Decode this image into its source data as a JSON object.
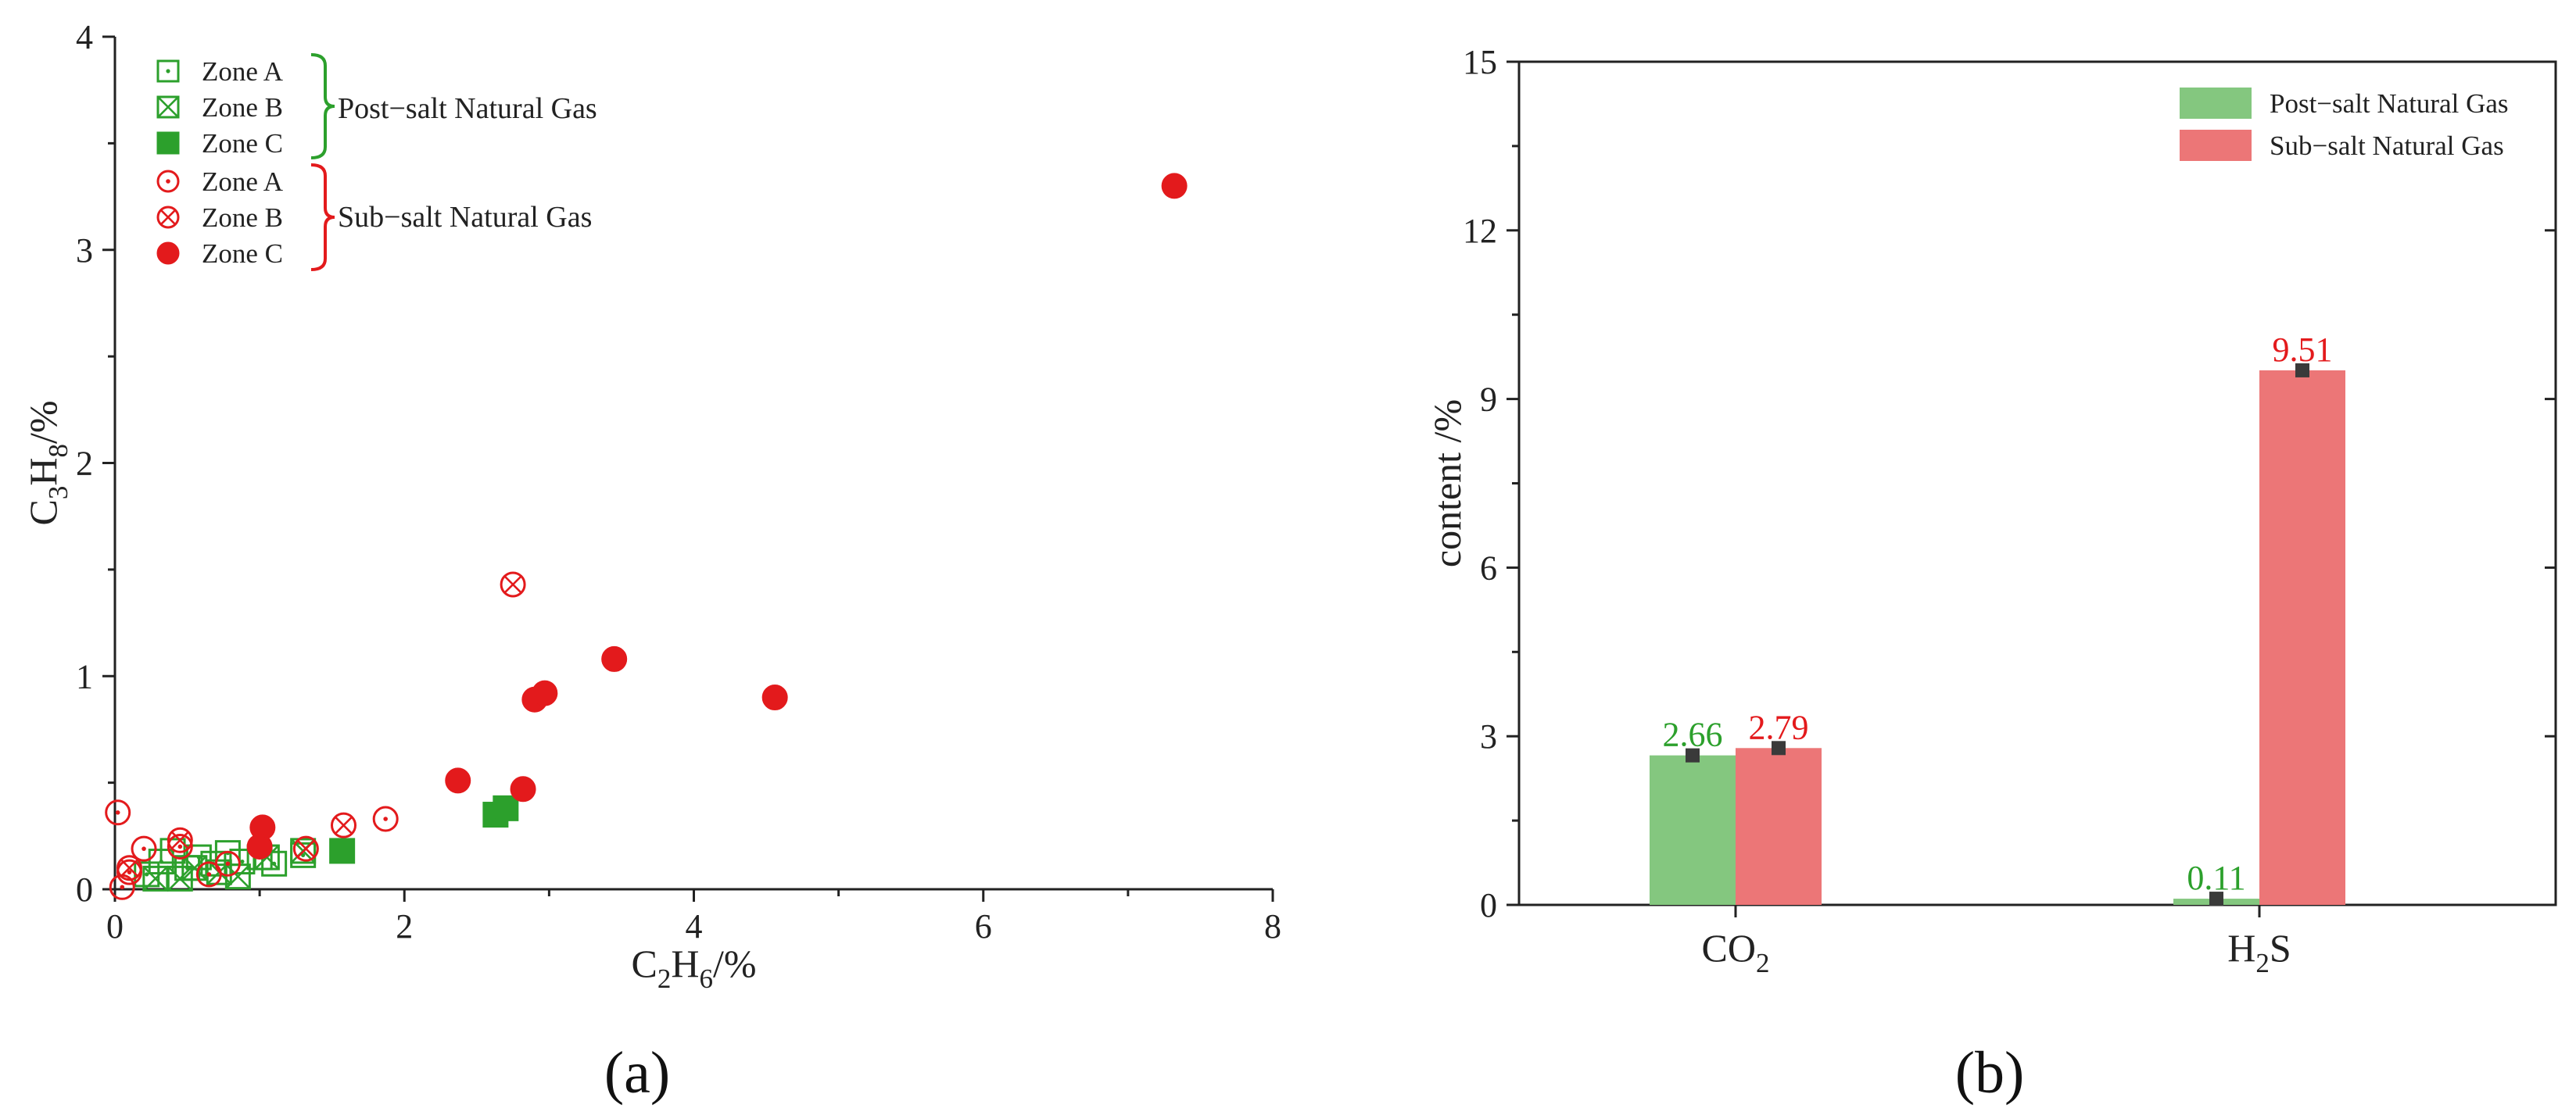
{
  "chart_data": [
    {
      "type": "scatter",
      "panel_label": "(a)",
      "xlabel": {
        "base": "C",
        "sub": "2",
        "base2": "H",
        "sub2": "6",
        "tail": "/%"
      },
      "ylabel": {
        "base": "C",
        "sub": "3",
        "base2": "H",
        "sub2": "8",
        "tail": "/%"
      },
      "xlim": [
        0,
        8
      ],
      "ylim": [
        0,
        4
      ],
      "xticks": [
        "0",
        "2",
        "4",
        "6",
        "8"
      ],
      "yticks": [
        "0",
        "1",
        "2",
        "3",
        "4"
      ],
      "legend_position": "top-left",
      "groups": [
        "Post−salt Natural Gas",
        "Sub−salt Natural Gas"
      ],
      "colors": {
        "post_salt": "#2ca02c",
        "sub_salt": "#e31a1c"
      },
      "series": [
        {
          "name": "Zone A",
          "group": 0,
          "marker": "square-dot",
          "points": [
            [
              0.22,
              0.07
            ],
            [
              0.32,
              0.13
            ],
            [
              0.4,
              0.18
            ],
            [
              0.5,
              0.1
            ],
            [
              0.58,
              0.15
            ],
            [
              0.68,
              0.12
            ],
            [
              0.78,
              0.17
            ],
            [
              0.88,
              0.13
            ],
            [
              1.0,
              0.15
            ],
            [
              1.1,
              0.12
            ],
            [
              1.3,
              0.16
            ]
          ]
        },
        {
          "name": "Zone B",
          "group": 0,
          "marker": "square-x",
          "points": [
            [
              0.28,
              0.05
            ],
            [
              0.45,
              0.05
            ],
            [
              0.55,
              0.1
            ],
            [
              0.72,
              0.08
            ],
            [
              0.85,
              0.06
            ],
            [
              1.05,
              0.15
            ],
            [
              1.3,
              0.18
            ]
          ]
        },
        {
          "name": "Zone C",
          "group": 0,
          "marker": "square-filled",
          "points": [
            [
              1.57,
              0.18
            ],
            [
              2.63,
              0.35
            ],
            [
              2.7,
              0.38
            ]
          ]
        },
        {
          "name": "Zone A",
          "group": 1,
          "marker": "circle-dot",
          "points": [
            [
              0.02,
              0.36
            ],
            [
              0.05,
              0.01
            ],
            [
              0.1,
              0.08
            ],
            [
              0.2,
              0.19
            ],
            [
              0.45,
              0.2
            ],
            [
              0.65,
              0.07
            ],
            [
              0.78,
              0.12
            ],
            [
              1.87,
              0.33
            ]
          ]
        },
        {
          "name": "Zone B",
          "group": 1,
          "marker": "circle-x",
          "points": [
            [
              0.1,
              0.1
            ],
            [
              0.45,
              0.23
            ],
            [
              1.32,
              0.19
            ],
            [
              1.58,
              0.3
            ],
            [
              2.75,
              1.43
            ]
          ]
        },
        {
          "name": "Zone C",
          "group": 1,
          "marker": "circle-filled",
          "points": [
            [
              1.02,
              0.29
            ],
            [
              1.0,
              0.2
            ],
            [
              2.37,
              0.51
            ],
            [
              2.82,
              0.47
            ],
            [
              2.9,
              0.89
            ],
            [
              2.97,
              0.92
            ],
            [
              3.45,
              1.08
            ],
            [
              4.56,
              0.9
            ],
            [
              7.32,
              3.3
            ]
          ]
        }
      ]
    },
    {
      "type": "bar",
      "panel_label": "(b)",
      "ylabel": "content /%",
      "ylim": [
        0,
        15
      ],
      "yticks": [
        "0",
        "3",
        "6",
        "9",
        "12",
        "15"
      ],
      "categories": [
        {
          "base": "CO",
          "sub": "2",
          "tail": ""
        },
        {
          "base": "H",
          "sub": "2",
          "tail": "S"
        }
      ],
      "legend_position": "top-right",
      "series": [
        {
          "name": "Post−salt Natural Gas",
          "color": "#84c77f",
          "label_color": "#2ca02c",
          "values": [
            2.66,
            0.11
          ],
          "labels": [
            "2.66",
            "0.11"
          ]
        },
        {
          "name": "Sub−salt Natural Gas",
          "color": "#ec7677",
          "label_color": "#e31a1c",
          "values": [
            2.79,
            9.51
          ],
          "labels": [
            "2.79",
            "9.51"
          ]
        }
      ]
    }
  ]
}
